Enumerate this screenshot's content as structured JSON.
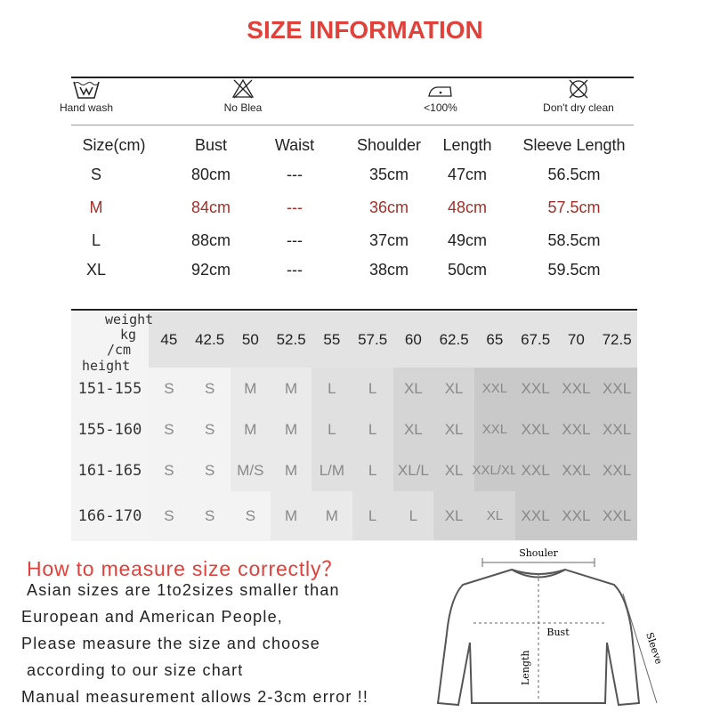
{
  "title": "SIZE INFORMATION",
  "care": [
    {
      "icon": "hand-wash-icon",
      "label": "Hand wash"
    },
    {
      "icon": "no-bleach-icon",
      "label": "No Blea"
    },
    {
      "icon": "iron-icon",
      "label": "<100%"
    },
    {
      "icon": "no-dry-clean-icon",
      "label": "Don't dry clean"
    }
  ],
  "measure_table": {
    "headers": [
      "Size(cm)",
      "Bust",
      "Waist",
      "Shoulder",
      "Length",
      "Sleeve  Length"
    ],
    "rows": [
      [
        "S",
        "80cm",
        "---",
        "35cm",
        "47cm",
        "56.5cm"
      ],
      [
        "M",
        "84cm",
        "---",
        "36cm",
        "48cm",
        "57.5cm"
      ],
      [
        "L",
        "88cm",
        "---",
        "37cm",
        "49cm",
        "58.5cm"
      ],
      [
        "XL",
        "92cm",
        "---",
        "38cm",
        "50cm",
        "59.5cm"
      ]
    ],
    "highlight_row": 1,
    "highlight_color": "#a0302a"
  },
  "fit_chart": {
    "corner": {
      "weight": "weight",
      "kg": "kg",
      "cm": "/cm",
      "height": "height"
    },
    "weights": [
      "45",
      "42.5",
      "50",
      "52.5",
      "55",
      "57.5",
      "60",
      "62.5",
      "65",
      "67.5",
      "70",
      "72.5"
    ],
    "rows": [
      {
        "height": "151-155",
        "sizes": [
          "S",
          "S",
          "M",
          "M",
          "L",
          "L",
          "XL",
          "XL",
          "XXL",
          "XXL",
          "XXL",
          "XXL"
        ]
      },
      {
        "height": "155-160",
        "sizes": [
          "S",
          "S",
          "M",
          "M",
          "L",
          "L",
          "XL",
          "XL",
          "XXL",
          "XXL",
          "XXL",
          "XXL"
        ]
      },
      {
        "height": "161-165",
        "sizes": [
          "S",
          "S",
          "M/S",
          "M",
          "L/M",
          "L",
          "XL/L",
          "XL",
          "XXL/XL",
          "XXL",
          "XXL",
          "XXL"
        ]
      },
      {
        "height": "166-170",
        "sizes": [
          "S",
          "S",
          "S",
          "M",
          "M",
          "L",
          "L",
          "XL",
          "XL",
          "XXL",
          "XXL",
          "XXL"
        ]
      }
    ]
  },
  "howto": {
    "title": "How to measure size correctly？",
    "lines": [
      "Asian sizes are 1to2sizes smaller than",
      "European and American People,",
      "Please measure the size and choose",
      "according to our size chart",
      "Manual measurement allows 2-3cm error !!"
    ]
  },
  "diagram": {
    "shoulder": "Shouler",
    "bust": "Bust",
    "length": "Length",
    "sleeve": "Sleeve"
  },
  "colors": {
    "title": "#e0413a",
    "howto": "#e0413a"
  }
}
